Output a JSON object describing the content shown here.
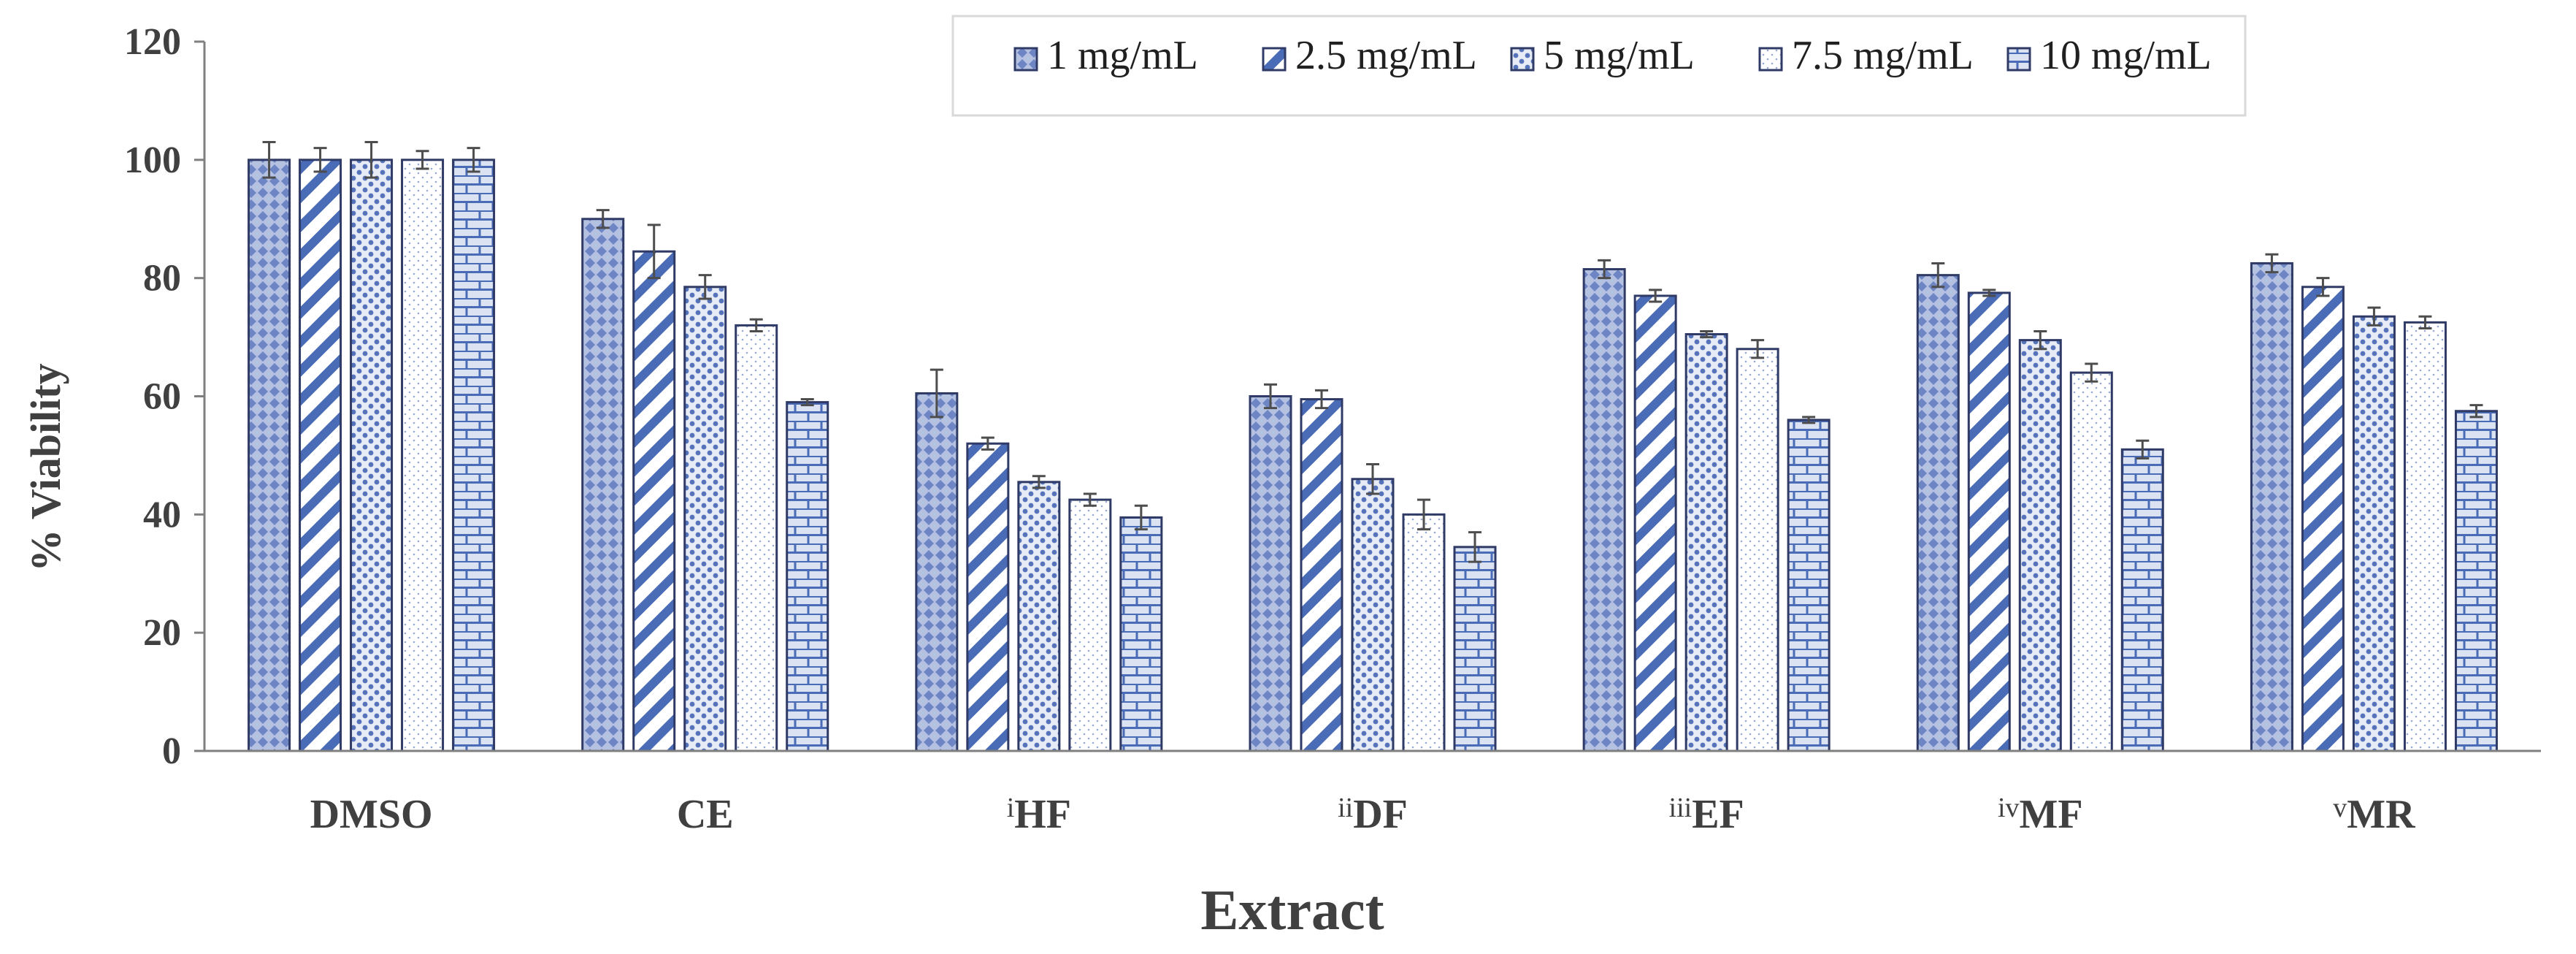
{
  "chart_data": {
    "type": "bar",
    "categories": [
      {
        "prefix": "",
        "label": "DMSO"
      },
      {
        "prefix": "",
        "label": "CE"
      },
      {
        "prefix": "i",
        "label": "HF"
      },
      {
        "prefix": "ii",
        "label": "DF"
      },
      {
        "prefix": "iii",
        "label": "EF"
      },
      {
        "prefix": "iv",
        "label": "MF"
      },
      {
        "prefix": "v",
        "label": "MR"
      }
    ],
    "series": [
      {
        "name": "1 mg/mL",
        "pattern": "diamond",
        "values": [
          100,
          90,
          60.5,
          60,
          81.5,
          80.5,
          82.5
        ],
        "errors": [
          3,
          1.5,
          4,
          2,
          1.5,
          2,
          1.5
        ]
      },
      {
        "name": "2.5 mg/mL",
        "pattern": "diagonal",
        "values": [
          100,
          84.5,
          52,
          59.5,
          77,
          77.5,
          78.5
        ],
        "errors": [
          2,
          4.5,
          1,
          1.5,
          1,
          0.5,
          1.5
        ]
      },
      {
        "name": "5 mg/mL",
        "pattern": "dots",
        "values": [
          100,
          78.5,
          45.5,
          46,
          70.5,
          69.5,
          73.5
        ],
        "errors": [
          3,
          2,
          1,
          2.5,
          0.5,
          1.5,
          1.5
        ]
      },
      {
        "name": "7.5 mg/mL",
        "pattern": "fine-dots",
        "values": [
          100,
          72,
          42.5,
          40,
          68,
          64,
          72.5
        ],
        "errors": [
          1.5,
          1,
          1,
          2.5,
          1.5,
          1.5,
          1
        ]
      },
      {
        "name": "10 mg/mL",
        "pattern": "brick",
        "values": [
          100,
          59,
          39.5,
          34.5,
          56,
          51,
          57.5
        ],
        "errors": [
          2,
          0.5,
          2,
          2.5,
          0.5,
          1.5,
          1
        ]
      }
    ],
    "xlabel": "Extract",
    "ylabel": "% Viability",
    "ylim": [
      0,
      120
    ],
    "yticks": [
      0,
      20,
      40,
      60,
      80,
      100,
      120
    ],
    "grid": false,
    "legend_position": "top-right",
    "colors": {
      "border": "#2f3b66",
      "fill": "#4a6bb5",
      "axis": "#7f7f7f",
      "text": "#404040"
    }
  }
}
